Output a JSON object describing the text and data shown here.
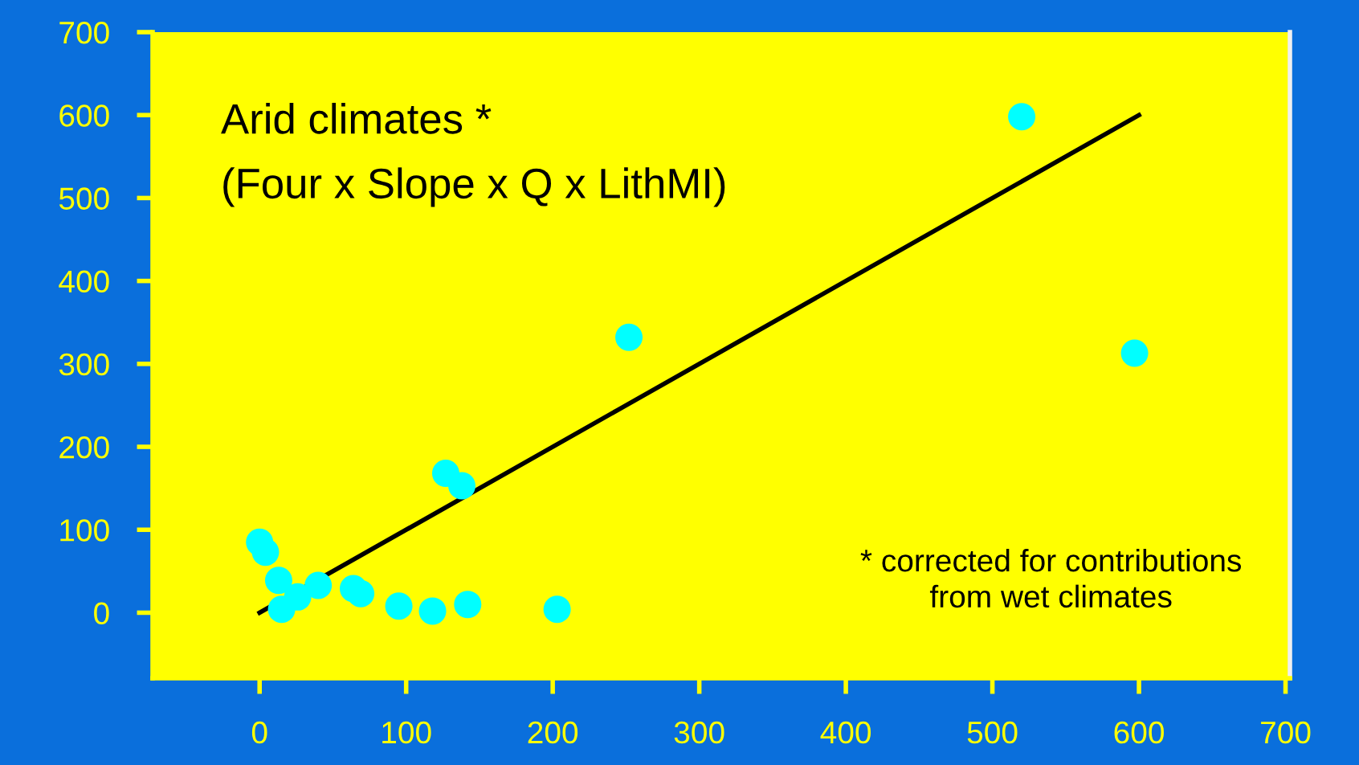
{
  "chart_data": {
    "type": "scatter",
    "annotations": [
      "Arid climates *",
      "(Four x Slope x Q x LithMI)",
      "* corrected for contributions\nfrom wet climates"
    ],
    "series": [
      {
        "color": "#00ffff",
        "marker": "circle",
        "x": [
          0,
          4,
          13,
          15,
          26,
          40,
          64,
          69,
          95,
          118,
          142,
          203,
          127,
          138,
          252,
          520,
          597
        ],
        "values": [
          85,
          73,
          39,
          4,
          19,
          33,
          29,
          23,
          8,
          2,
          10,
          4,
          168,
          153,
          332,
          598,
          313
        ]
      },
      {
        "type": "line",
        "marker": "none",
        "color": "#000000",
        "x": [
          0,
          600
        ],
        "values": [
          0,
          600
        ]
      }
    ],
    "xlim": [
      -73,
      703
    ],
    "ylim": [
      -79,
      700
    ],
    "xticks": [
      0,
      100,
      200,
      300,
      400,
      500,
      600,
      700
    ],
    "yticks": [
      0,
      100,
      200,
      300,
      400,
      500,
      600,
      700
    ],
    "grid": false,
    "legend": false
  }
}
